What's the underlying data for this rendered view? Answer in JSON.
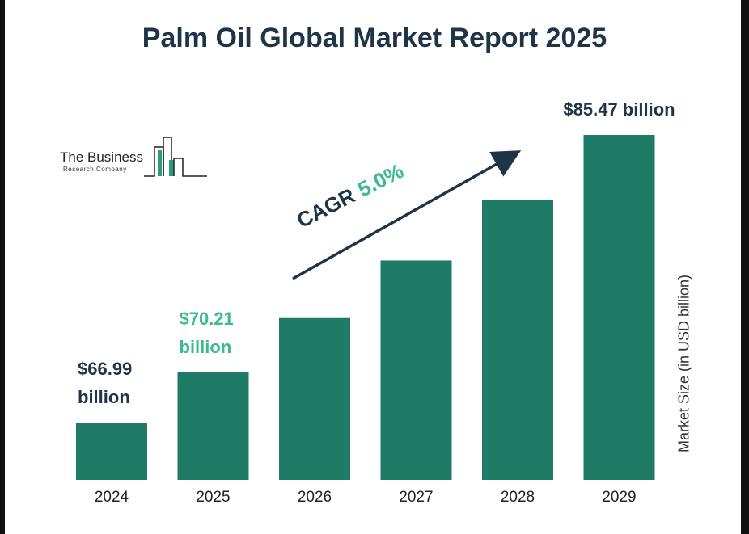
{
  "title": "Palm Oil Global Market Report 2025",
  "logo": {
    "name": "The Business",
    "sub": "Research Company"
  },
  "cagr": {
    "label": "CAGR",
    "value": "5.0%"
  },
  "colors": {
    "bar": "#1f7a66",
    "accent": "#3dbb8e",
    "dark": "#1f3447"
  },
  "chart_data": {
    "type": "bar",
    "title": "Palm Oil Global Market Report 2025",
    "ylabel": "Market Size (in USD billion)",
    "categories": [
      "2024",
      "2025",
      "2026",
      "2027",
      "2028",
      "2029"
    ],
    "values": [
      66.99,
      70.21,
      73.7,
      77.4,
      81.3,
      85.47
    ],
    "data_labels": [
      {
        "index": 0,
        "line1": "$66.99",
        "line2": "billion",
        "color": "dark"
      },
      {
        "index": 1,
        "line1": "$70.21",
        "line2": "billion",
        "color": "accent"
      },
      {
        "index": 5,
        "line1": "$85.47 billion",
        "line2": "",
        "color": "dark"
      }
    ]
  }
}
